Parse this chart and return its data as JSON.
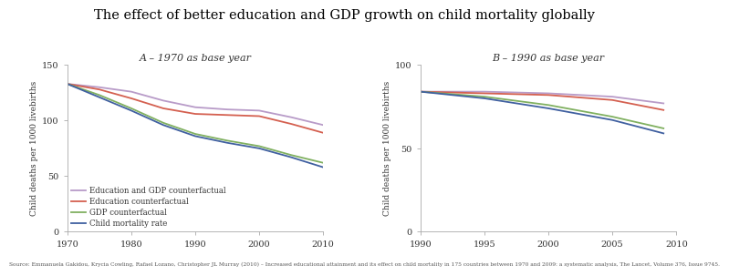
{
  "title": "The effect of better education and GDP growth on child mortality globally",
  "source": "Source: Emmanuela Gakidou, Krycia Cowling, Rafael Lozano, Christopher JL Murray (2010) – Increased educational attainment and its effect on child mortality in 175 countries between 1970 and 2009: a systematic analysis, The Lancet, Volume 376, Issue 9745.",
  "panel_A": {
    "subtitle": "A – 1970 as base year",
    "xmin": 1970,
    "xmax": 2010,
    "ymin": 0,
    "ymax": 150,
    "yticks": [
      0,
      50,
      100,
      150
    ],
    "xticks": [
      1970,
      1980,
      1990,
      2000,
      2010
    ],
    "ylabel": "Child deaths per 1000 livebirths",
    "edu_gdp": {
      "x": [
        1970,
        1975,
        1980,
        1985,
        1990,
        1995,
        2000,
        2005,
        2010
      ],
      "y": [
        133,
        130,
        126,
        118,
        112,
        110,
        109,
        103,
        96
      ]
    },
    "edu": {
      "x": [
        1970,
        1975,
        1980,
        1985,
        1990,
        1995,
        2000,
        2005,
        2010
      ],
      "y": [
        133,
        128,
        120,
        111,
        106,
        105,
        104,
        97,
        89
      ]
    },
    "gdp": {
      "x": [
        1970,
        1975,
        1980,
        1985,
        1990,
        1995,
        2000,
        2005,
        2010
      ],
      "y": [
        133,
        123,
        111,
        98,
        88,
        82,
        77,
        69,
        62
      ]
    },
    "child": {
      "x": [
        1970,
        1975,
        1980,
        1985,
        1990,
        1995,
        2000,
        2005,
        2010
      ],
      "y": [
        133,
        121,
        109,
        96,
        86,
        80,
        75,
        67,
        58
      ]
    }
  },
  "panel_B": {
    "subtitle": "B – 1990 as base year",
    "xmin": 1990,
    "xmax": 2010,
    "ymin": 0,
    "ymax": 100,
    "yticks": [
      0,
      50,
      100
    ],
    "xticks": [
      1990,
      1995,
      2000,
      2005,
      2010
    ],
    "ylabel": "Child deaths per 1000 livebirths",
    "edu_gdp": {
      "x": [
        1990,
        1995,
        2000,
        2005,
        2009
      ],
      "y": [
        84,
        84,
        83,
        81,
        77
      ]
    },
    "edu": {
      "x": [
        1990,
        1995,
        2000,
        2005,
        2009
      ],
      "y": [
        84,
        83,
        82,
        79,
        73
      ]
    },
    "gdp": {
      "x": [
        1990,
        1995,
        2000,
        2005,
        2009
      ],
      "y": [
        84,
        81,
        76,
        69,
        62
      ]
    },
    "child": {
      "x": [
        1990,
        1995,
        2000,
        2005,
        2009
      ],
      "y": [
        84,
        80,
        74,
        67,
        59
      ]
    }
  },
  "colors": {
    "edu_gdp": "#b89bc8",
    "edu": "#d46050",
    "gdp": "#80b060",
    "child": "#4060a0"
  },
  "legend_labels": {
    "edu_gdp": "Education and GDP counterfactual",
    "edu": "Education counterfactual",
    "gdp": "GDP counterfactual",
    "child": "Child mortality rate"
  }
}
